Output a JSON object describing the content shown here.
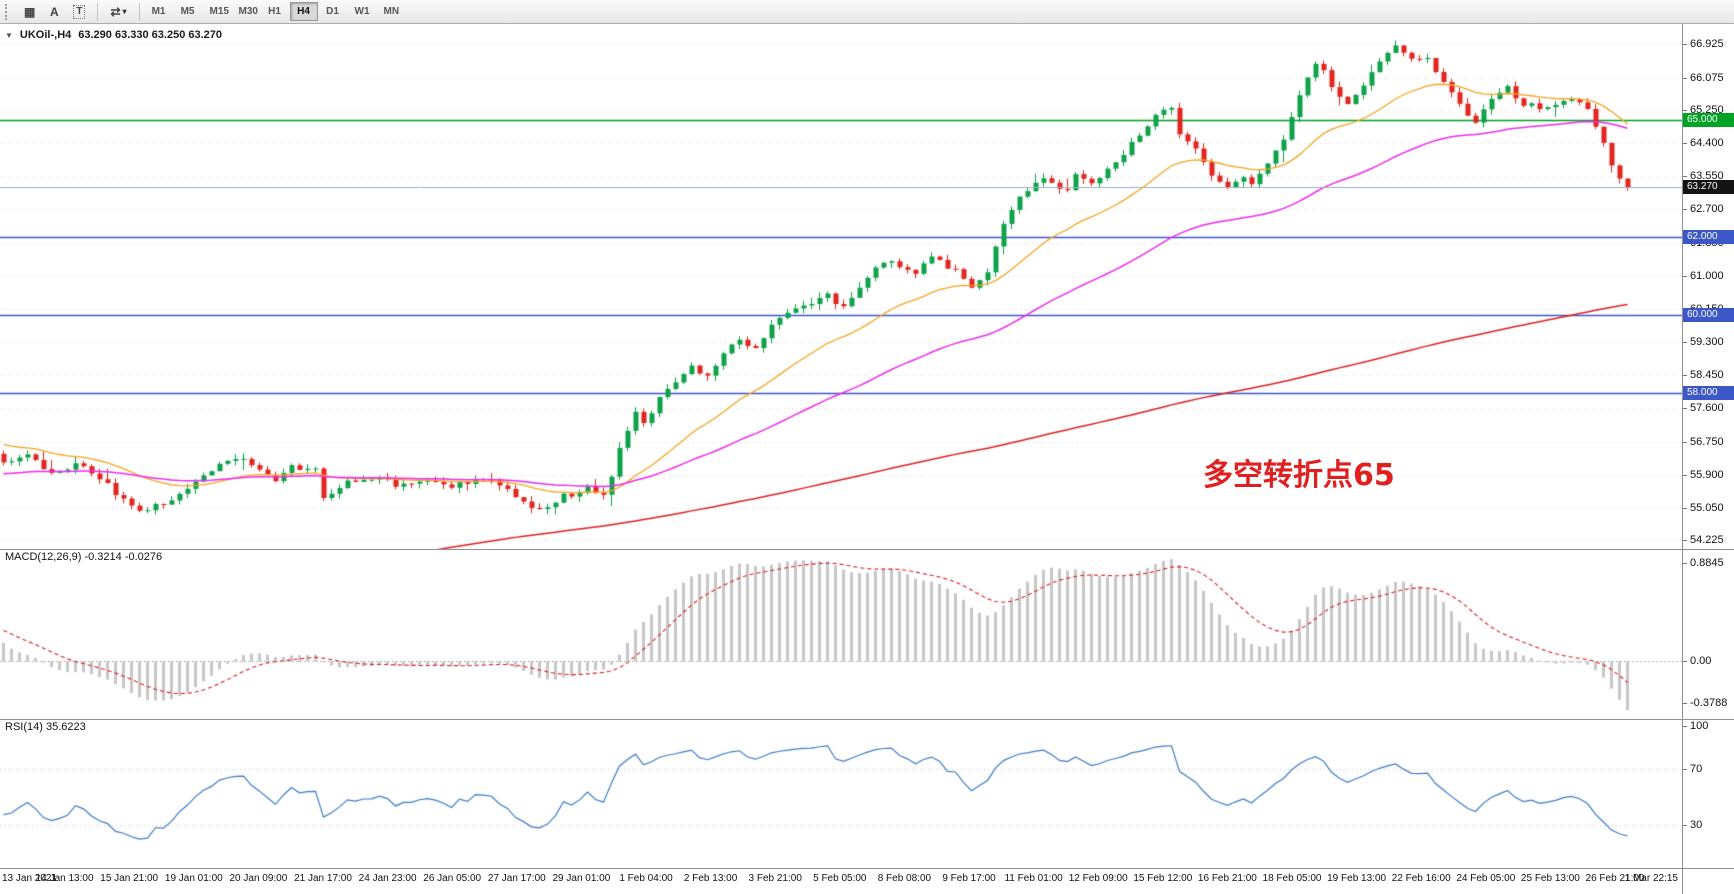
{
  "toolbar": {
    "grid_icon": "▦",
    "button_a": "A",
    "button_t": "T",
    "cycle_icon": "⇄",
    "caret": "▾",
    "timeframes": [
      "M1",
      "M5",
      "M15",
      "M30",
      "H1",
      "H4",
      "D1",
      "W1",
      "MN"
    ],
    "active_timeframe": "H4"
  },
  "legend": {
    "collapse_icon": "▼",
    "symbol": "UKOil-,H4",
    "ohlc": "63.290 63.330 63.250 63.270"
  },
  "annotation": {
    "text": "多空转折点65",
    "color": "#e21f1f"
  },
  "price_axis_labels": [
    "66.925",
    "66.075",
    "65.250",
    "64.400",
    "63.550",
    "62.700",
    "61.850",
    "61.000",
    "60.150",
    "59.300",
    "58.450",
    "57.600",
    "56.750",
    "55.900",
    "55.050",
    "54.225"
  ],
  "time_axis_labels": [
    "13 Jan 2021",
    "14 Jan 13:00",
    "15 Jan 21:00",
    "19 Jan 01:00",
    "20 Jan 09:00",
    "21 Jan 17:00",
    "24 Jan 23:00",
    "26 Jan 05:00",
    "27 Jan 17:00",
    "29 Jan 01:00",
    "1 Feb 04:00",
    "2 Feb 13:00",
    "3 Feb 21:00",
    "5 Feb 05:00",
    "8 Feb 08:00",
    "9 Feb 17:00",
    "11 Feb 01:00",
    "12 Feb 09:00",
    "15 Feb 12:00",
    "16 Feb 21:00",
    "18 Feb 05:00",
    "19 Feb 13:00",
    "22 Feb 16:00",
    "24 Feb 05:00",
    "25 Feb 13:00",
    "26 Feb 21:00",
    "1 Mar 22:15"
  ],
  "levels": {
    "resistance": {
      "value": 65.0,
      "label": "65.000",
      "color": "#00a325"
    },
    "support": [
      {
        "value": 62.0,
        "label": "62.000"
      },
      {
        "value": 60.0,
        "label": "60.000"
      },
      {
        "value": 58.0,
        "label": "58.000"
      }
    ],
    "support_color": "#3c57c8",
    "bid": {
      "value": 63.27,
      "label": "63.270",
      "line_color": "#9db1c7",
      "badge_color": "#141414"
    }
  },
  "macd_panel": {
    "label": "MACD(12,26,9) -0.3214 -0.0276",
    "fast": 12,
    "slow": 26,
    "signal": 9,
    "current_macd": -0.3214,
    "current_signal": -0.0276,
    "axis_labels": [
      "0.8845",
      "0.00",
      "-0.3788"
    ],
    "histogram_color": "#c7c7c7",
    "signal_color": "#dd1f1f"
  },
  "rsi_panel": {
    "label": "RSI(14) 35.6223",
    "period": 14,
    "current": 35.6223,
    "axis_labels": [
      "100",
      "70",
      "30"
    ],
    "level_lines": [
      70,
      30
    ],
    "color": "#3d7dc8"
  },
  "chart_data": {
    "type": "candlestick",
    "symbol": "UKOil-",
    "timeframe": "H4",
    "current": {
      "open": 63.29,
      "high": 63.33,
      "low": 63.25,
      "close": 63.27
    },
    "y_range": [
      54.0,
      67.45
    ],
    "bars_visible": 204,
    "pre_window_bars": 200,
    "close_keyframes": [
      [
        -200,
        46.5
      ],
      [
        -170,
        48.0
      ],
      [
        -150,
        48.5
      ],
      [
        -130,
        50.0
      ],
      [
        -110,
        51.0
      ],
      [
        -95,
        51.3
      ],
      [
        -80,
        52.8
      ],
      [
        -60,
        54.5
      ],
      [
        -40,
        55.7
      ],
      [
        -20,
        56.3
      ],
      [
        -8,
        57.0
      ],
      [
        -3,
        57.15
      ],
      [
        0,
        56.2
      ],
      [
        3,
        56.45
      ],
      [
        6,
        55.9
      ],
      [
        9,
        56.15
      ],
      [
        11,
        56.0
      ],
      [
        14,
        55.45
      ],
      [
        17,
        54.95
      ],
      [
        20,
        55.15
      ],
      [
        23,
        55.5
      ],
      [
        26,
        56.0
      ],
      [
        29,
        56.35
      ],
      [
        32,
        56.1
      ],
      [
        34,
        55.75
      ],
      [
        36,
        56.1
      ],
      [
        39,
        56.0
      ],
      [
        40,
        55.3
      ],
      [
        43,
        55.7
      ],
      [
        46,
        55.85
      ],
      [
        50,
        55.6
      ],
      [
        53,
        55.8
      ],
      [
        56,
        55.55
      ],
      [
        59,
        55.8
      ],
      [
        62,
        55.65
      ],
      [
        65,
        55.2
      ],
      [
        67,
        54.95
      ],
      [
        70,
        55.35
      ],
      [
        73,
        55.55
      ],
      [
        75,
        55.45
      ],
      [
        76,
        55.9
      ],
      [
        77,
        56.6
      ],
      [
        79,
        57.55
      ],
      [
        80,
        57.2
      ],
      [
        82,
        57.9
      ],
      [
        84,
        58.3
      ],
      [
        86,
        58.65
      ],
      [
        88,
        58.4
      ],
      [
        90,
        59.0
      ],
      [
        92,
        59.35
      ],
      [
        94,
        59.15
      ],
      [
        96,
        59.7
      ],
      [
        98,
        60.0
      ],
      [
        101,
        60.3
      ],
      [
        103,
        60.5
      ],
      [
        105,
        60.15
      ],
      [
        108,
        61.0
      ],
      [
        111,
        61.4
      ],
      [
        114,
        61.1
      ],
      [
        116,
        61.45
      ],
      [
        119,
        61.15
      ],
      [
        121,
        60.7
      ],
      [
        123,
        61.1
      ],
      [
        125,
        62.4
      ],
      [
        126,
        62.7
      ],
      [
        128,
        63.2
      ],
      [
        130,
        63.45
      ],
      [
        133,
        63.2
      ],
      [
        134,
        63.55
      ],
      [
        136,
        63.3
      ],
      [
        138,
        63.75
      ],
      [
        140,
        64.1
      ],
      [
        142,
        64.6
      ],
      [
        144,
        65.1
      ],
      [
        146,
        65.25
      ],
      [
        147,
        64.6
      ],
      [
        149,
        64.2
      ],
      [
        151,
        63.6
      ],
      [
        153,
        63.2
      ],
      [
        155,
        63.5
      ],
      [
        156,
        63.3
      ],
      [
        158,
        63.9
      ],
      [
        160,
        64.5
      ],
      [
        162,
        65.6
      ],
      [
        164,
        66.5
      ],
      [
        166,
        65.9
      ],
      [
        168,
        65.4
      ],
      [
        170,
        65.9
      ],
      [
        172,
        66.5
      ],
      [
        174,
        66.85
      ],
      [
        176,
        66.5
      ],
      [
        178,
        66.6
      ],
      [
        180,
        66.0
      ],
      [
        182,
        65.4
      ],
      [
        184,
        64.95
      ],
      [
        186,
        65.55
      ],
      [
        188,
        65.8
      ],
      [
        190,
        65.4
      ],
      [
        192,
        65.3
      ],
      [
        194,
        65.45
      ],
      [
        196,
        65.6
      ],
      [
        198,
        65.35
      ],
      [
        200,
        64.4
      ],
      [
        201,
        63.9
      ],
      [
        202,
        63.45
      ],
      [
        203,
        63.27
      ]
    ],
    "up_color": "#0ea24a",
    "down_color": "#e3251e",
    "moving_averages": [
      {
        "period": 21,
        "type": "ema",
        "color": "#f5a623",
        "width": 1.3
      },
      {
        "period": 55,
        "type": "ema",
        "color": "#ee2dee",
        "width": 1.5
      },
      {
        "period": 200,
        "type": "sma",
        "color": "#e02020",
        "width": 1.5
      }
    ],
    "grid_color": "#dedede"
  }
}
